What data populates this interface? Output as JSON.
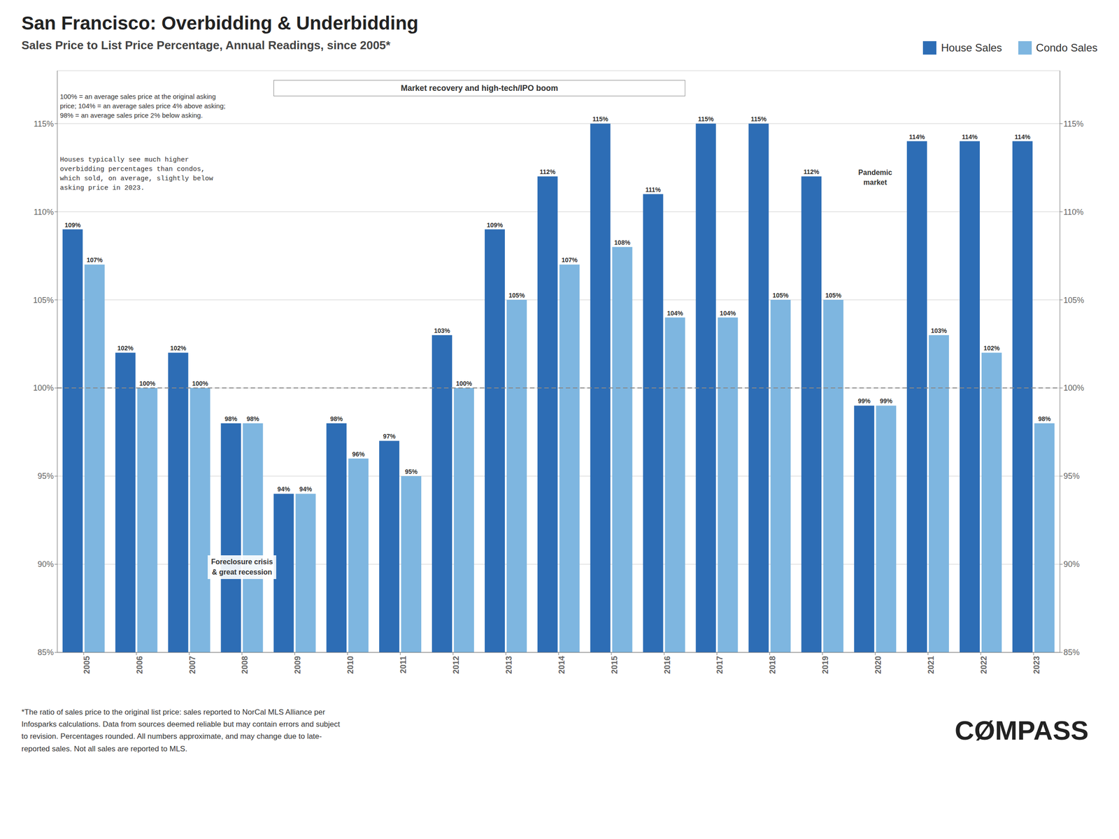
{
  "chart_data": {
    "type": "bar",
    "title": "San Francisco: Overbidding & Underbidding",
    "subtitle": "Sales Price to List Price Percentage, Annual Readings, since 2005*",
    "categories": [
      "2005",
      "2006",
      "2007",
      "2008",
      "2009",
      "2010",
      "2011",
      "2012",
      "2013",
      "2014",
      "2015",
      "2016",
      "2017",
      "2018",
      "2019",
      "2020",
      "2021",
      "2022",
      "2023"
    ],
    "series": [
      {
        "name": "House Sales",
        "color": "#2D6DB5",
        "values": [
          109,
          102,
          102,
          98,
          94,
          98,
          97,
          103,
          109,
          112,
          115,
          111,
          115,
          115,
          112,
          99,
          114,
          114,
          114
        ],
        "value_labels": [
          "109%",
          "102%",
          "102%",
          "98%",
          "94%",
          "98%",
          "97%",
          "103%",
          "109%",
          "112%",
          "115%",
          "111%",
          "115%",
          "115%",
          "112%",
          "99%",
          "114%",
          "114%",
          "114%"
        ]
      },
      {
        "name": "Condo Sales",
        "color": "#7EB6E0",
        "values": [
          107,
          100,
          100,
          98,
          94,
          96,
          95,
          100,
          105,
          107,
          108,
          104,
          104,
          105,
          105,
          99,
          103,
          102,
          98
        ],
        "value_labels": [
          "107%",
          "100%",
          "100%",
          "98%",
          "94%",
          "96%",
          "95%",
          "100%",
          "105%",
          "107%",
          "108%",
          "104%",
          "104%",
          "105%",
          "105%",
          "99%",
          "103%",
          "102%",
          "98%"
        ]
      }
    ],
    "ylim": [
      85,
      118
    ],
    "yticks": [
      {
        "value": 85,
        "label": "85%"
      },
      {
        "value": 90,
        "label": "90%"
      },
      {
        "value": 95,
        "label": "95%"
      },
      {
        "value": 100,
        "label": "100%"
      },
      {
        "value": 105,
        "label": "105%"
      },
      {
        "value": 110,
        "label": "110%"
      },
      {
        "value": 115,
        "label": "115%"
      }
    ],
    "reference_line": 100,
    "grid": true,
    "legend": "upper right",
    "data_labels": true,
    "annotations": [
      "100% = an average sales price at the original asking\nprice; 104% = an average sales price 4% above asking;\n98% = an average sales price 2% below asking.",
      "Houses typically see much higher\noverbidding percentages than condos,\nwhich sold, on average, slightly below\nasking price in 2023.",
      "Foreclosure crisis\n& great recession",
      "Market recovery and high-tech/IPO boom",
      "Pandemic\nmarket",
      "CØMPASS"
    ],
    "footnote": "*The ratio of sales price to the original list price: sales reported to NorCal MLS Alliance per\nInfosparks calculations. Data from sources deemed reliable but may contain errors and subject\nto revision. Percentages rounded. All numbers approximate, and may change due to late-\nreported sales. Not all sales are reported to MLS."
  }
}
